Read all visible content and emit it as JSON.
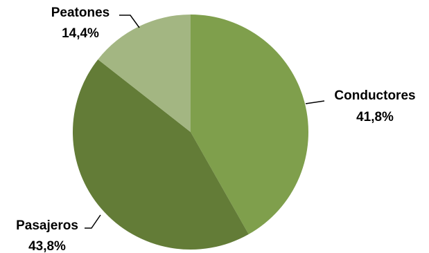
{
  "chart_data": {
    "type": "pie",
    "slices": [
      {
        "label": "Conductores",
        "value": 41.8,
        "display": "41,8%",
        "color": "#7f9f4c"
      },
      {
        "label": "Pasajeros",
        "value": 43.8,
        "display": "43,8%",
        "color": "#637c37"
      },
      {
        "label": "Peatones",
        "value": 14.4,
        "display": "14,4%",
        "color": "#a3b682"
      }
    ],
    "start_angle": "top",
    "direction": "clockwise",
    "legend": "none",
    "label_style": "outside labels with leader lines"
  }
}
